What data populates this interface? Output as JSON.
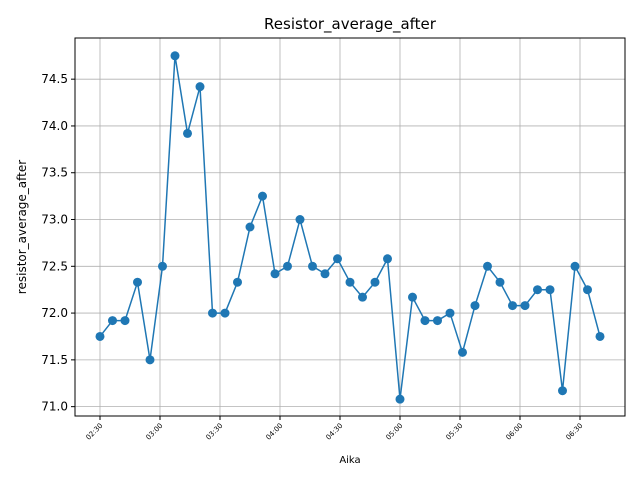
{
  "chart_data": {
    "type": "line",
    "title": "Resistor_average_after",
    "xlabel": "Aika",
    "ylabel": "resistor_average_after",
    "x": [
      150,
      156.25,
      162.5,
      168.75,
      175,
      181.25,
      187.5,
      193.75,
      200,
      206.25,
      212.5,
      218.75,
      225,
      231.25,
      237.5,
      243.75,
      250,
      256.25,
      262.5,
      268.75,
      275,
      281.25,
      287.5,
      293.75,
      300,
      306.25,
      312.5,
      318.75,
      325,
      331.25,
      337.5,
      343.75,
      350,
      356.25,
      362.5,
      368.75,
      375,
      381.25,
      387.5,
      393.75,
      400
    ],
    "series": [
      {
        "name": "resistor_average_after",
        "color": "#1f77b4",
        "values": [
          71.75,
          71.92,
          71.92,
          72.33,
          71.5,
          72.5,
          74.75,
          73.92,
          74.42,
          72.0,
          72.0,
          72.33,
          72.92,
          73.25,
          72.42,
          72.5,
          73.0,
          72.5,
          72.42,
          72.58,
          72.33,
          72.17,
          72.33,
          72.58,
          71.08,
          72.17,
          71.92,
          71.92,
          72.0,
          71.58,
          72.08,
          72.5,
          72.33,
          72.08,
          72.08,
          72.25,
          72.25,
          71.17,
          72.5,
          72.25,
          71.75
        ]
      }
    ],
    "xlim": [
      137.5,
      412.5
    ],
    "xticks": [
      {
        "value": 150,
        "label": "02:30"
      },
      {
        "value": 180,
        "label": "03:00"
      },
      {
        "value": 210,
        "label": "03:30"
      },
      {
        "value": 240,
        "label": "04:00"
      },
      {
        "value": 270,
        "label": "04:30"
      },
      {
        "value": 300,
        "label": "05:00"
      },
      {
        "value": 330,
        "label": "05:30"
      },
      {
        "value": 360,
        "label": "06:00"
      },
      {
        "value": 390,
        "label": "06:30"
      }
    ],
    "ylim": [
      70.9,
      74.94
    ],
    "yticks": [
      {
        "value": 71,
        "label": "71.0"
      },
      71.5,
      {
        "value": 72,
        "label": "72.0"
      },
      72.5,
      {
        "value": 73,
        "label": "73.0"
      },
      73.5,
      {
        "value": 74,
        "label": "74.0"
      },
      74.5
    ],
    "grid": true
  }
}
